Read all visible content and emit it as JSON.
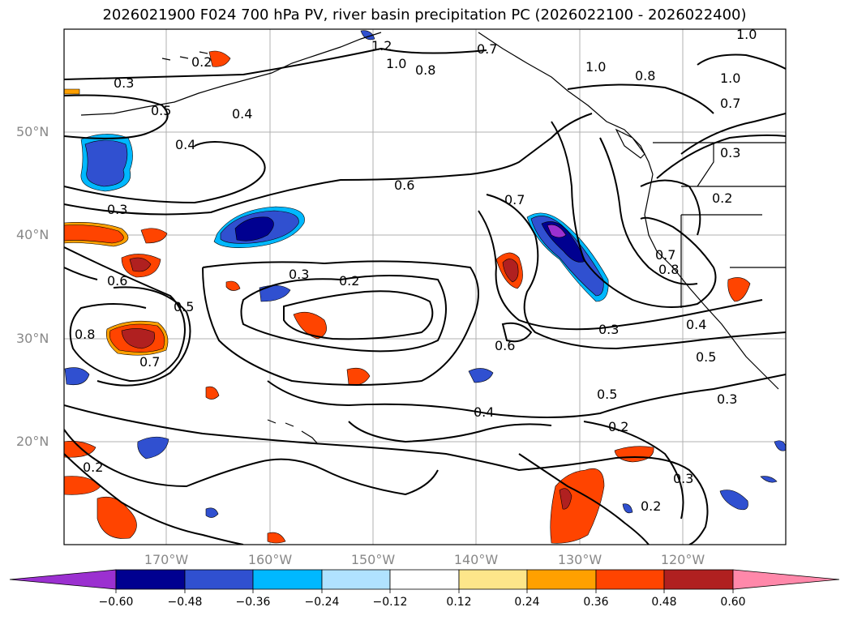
{
  "title": "2026021900 F024 700 hPa PV, river basin precipitation PC (2026022100 - 2026022400)",
  "lat_labels": [
    "50°N",
    "40°N",
    "30°N",
    "20°N"
  ],
  "lon_labels": [
    "170°W",
    "160°W",
    "150°W",
    "140°W",
    "130°W",
    "120°W"
  ],
  "contour_labels": [
    "1.0",
    "1.2",
    "1.0",
    "0.8",
    "0.7",
    "0.8",
    "1.0",
    "1.0",
    "0.7",
    "0.3",
    "0.2",
    "0.3",
    "0.2",
    "0.4",
    "0.5",
    "0.4",
    "0.6",
    "0.3",
    "0.7",
    "0.3",
    "0.2",
    "0.6",
    "0.8",
    "0.5",
    "0.7",
    "0.7",
    "0.8",
    "0.4",
    "0.3",
    "0.5",
    "0.6",
    "0.5",
    "0.3",
    "0.4",
    "0.2",
    "0.2",
    "0.3",
    "0.2"
  ],
  "colorbar": {
    "tick_labels": [
      "−0.60",
      "−0.48",
      "−0.36",
      "−0.24",
      "−0.12",
      "0.12",
      "0.24",
      "0.36",
      "0.48",
      "0.60"
    ],
    "colors": [
      "#9b30d0",
      "#000090",
      "#3050d0",
      "#00b8ff",
      "#b0e2ff",
      "#ffffff",
      "#fde68a",
      "#ffa000",
      "#ff4400",
      "#b02020",
      "#ff88aa"
    ]
  }
}
